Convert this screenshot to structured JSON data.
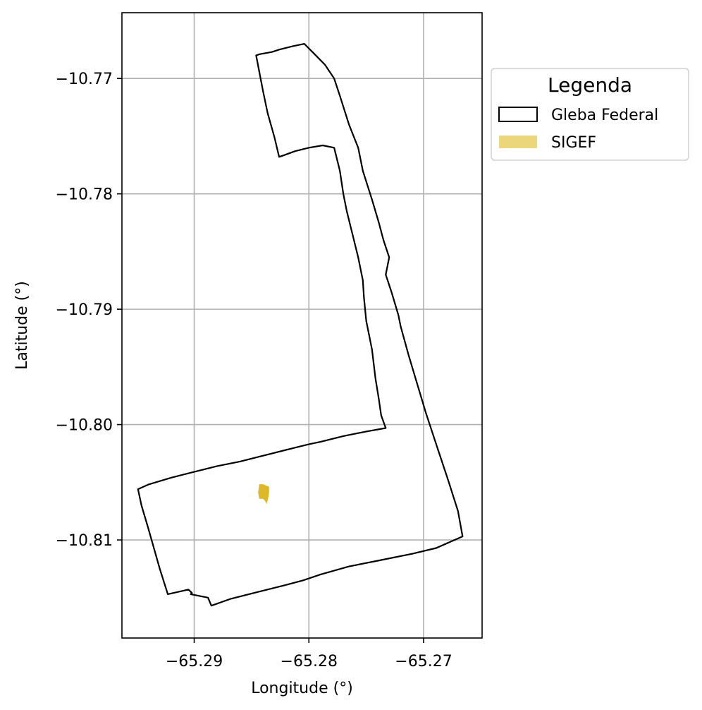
{
  "chart_data": {
    "type": "map",
    "xlabel": "Longitude (°)",
    "ylabel": "Latitude (°)",
    "xlim": [
      -65.2963,
      -65.2649
    ],
    "ylim": [
      -10.8185,
      -10.7643
    ],
    "grid": true,
    "x_ticks": [
      {
        "value": -65.29,
        "label": "−65.29"
      },
      {
        "value": -65.28,
        "label": "−65.28"
      },
      {
        "value": -65.27,
        "label": "−65.27"
      }
    ],
    "y_ticks": [
      {
        "value": -10.77,
        "label": "−10.77"
      },
      {
        "value": -10.78,
        "label": "−10.78"
      },
      {
        "value": -10.79,
        "label": "−10.79"
      },
      {
        "value": -10.8,
        "label": "−10.80"
      },
      {
        "value": -10.81,
        "label": "−10.81"
      }
    ],
    "legend": {
      "title": "Legenda",
      "placement": "outside-right-top",
      "entries": [
        {
          "label": "Gleba Federal",
          "style": "outline",
          "edge_color": "#000000",
          "fill_color": "#ffffff"
        },
        {
          "label": "SIGEF",
          "style": "fill",
          "fill_color": "#ebd679"
        }
      ]
    },
    "layers": [
      {
        "name": "Gleba Federal",
        "style": "outline",
        "edge_color": "#000000",
        "coordinates": [
          [
            -65.2846,
            -10.768
          ],
          [
            -65.2843,
            -10.7679
          ],
          [
            -65.2832,
            -10.7677
          ],
          [
            -65.2826,
            -10.7675
          ],
          [
            -65.2814,
            -10.7672
          ],
          [
            -65.2804,
            -10.767
          ],
          [
            -65.2796,
            -10.7678
          ],
          [
            -65.2786,
            -10.7688
          ],
          [
            -65.2778,
            -10.77
          ],
          [
            -65.2773,
            -10.7715
          ],
          [
            -65.2765,
            -10.774
          ],
          [
            -65.2757,
            -10.776
          ],
          [
            -65.2753,
            -10.778
          ],
          [
            -65.2745,
            -10.7805
          ],
          [
            -65.2739,
            -10.7825
          ],
          [
            -65.2735,
            -10.784
          ],
          [
            -65.273,
            -10.7855
          ],
          [
            -65.2733,
            -10.787
          ],
          [
            -65.2728,
            -10.7885
          ],
          [
            -65.2722,
            -10.7905
          ],
          [
            -65.272,
            -10.7915
          ],
          [
            -65.2713,
            -10.794
          ],
          [
            -65.2707,
            -10.796
          ],
          [
            -65.2698,
            -10.799
          ],
          [
            -65.2688,
            -10.802
          ],
          [
            -65.2678,
            -10.805
          ],
          [
            -65.267,
            -10.8075
          ],
          [
            -65.2666,
            -10.8097
          ],
          [
            -65.2689,
            -10.8107
          ],
          [
            -65.271,
            -10.8112
          ],
          [
            -65.274,
            -10.8118
          ],
          [
            -65.2765,
            -10.8123
          ],
          [
            -65.279,
            -10.813
          ],
          [
            -65.2805,
            -10.8135
          ],
          [
            -65.282,
            -10.8139
          ],
          [
            -65.2848,
            -10.8146
          ],
          [
            -65.2868,
            -10.8151
          ],
          [
            -65.2885,
            -10.8157
          ],
          [
            -65.2888,
            -10.815
          ],
          [
            -65.2903,
            -10.8147
          ],
          [
            -65.2902,
            -10.8146
          ],
          [
            -65.2905,
            -10.8143
          ],
          [
            -65.2923,
            -10.8147
          ],
          [
            -65.293,
            -10.8125
          ],
          [
            -65.294,
            -10.809
          ],
          [
            -65.2946,
            -10.807
          ],
          [
            -65.2949,
            -10.8056
          ],
          [
            -65.294,
            -10.8052
          ],
          [
            -65.292,
            -10.8046
          ],
          [
            -65.29,
            -10.8041
          ],
          [
            -65.288,
            -10.8036
          ],
          [
            -65.286,
            -10.8032
          ],
          [
            -65.284,
            -10.8027
          ],
          [
            -65.282,
            -10.8022
          ],
          [
            -65.28,
            -10.8017
          ],
          [
            -65.279,
            -10.8015
          ],
          [
            -65.277,
            -10.801
          ],
          [
            -65.275,
            -10.8006
          ],
          [
            -65.2733,
            -10.8003
          ],
          [
            -65.2737,
            -10.7992
          ],
          [
            -65.2739,
            -10.7978
          ],
          [
            -65.2742,
            -10.796
          ],
          [
            -65.2745,
            -10.7935
          ],
          [
            -65.275,
            -10.791
          ],
          [
            -65.2752,
            -10.789
          ],
          [
            -65.2753,
            -10.7875
          ],
          [
            -65.2757,
            -10.7855
          ],
          [
            -65.2762,
            -10.7835
          ],
          [
            -65.2767,
            -10.7815
          ],
          [
            -65.277,
            -10.78
          ],
          [
            -65.2773,
            -10.778
          ],
          [
            -65.2778,
            -10.776
          ],
          [
            -65.2788,
            -10.7758
          ],
          [
            -65.28,
            -10.776
          ],
          [
            -65.2812,
            -10.7763
          ],
          [
            -65.2823,
            -10.7767
          ],
          [
            -65.2826,
            -10.7768
          ],
          [
            -65.283,
            -10.7751
          ],
          [
            -65.2836,
            -10.773
          ],
          [
            -65.284,
            -10.7711
          ],
          [
            -65.2846,
            -10.768
          ]
        ]
      },
      {
        "name": "SIGEF",
        "style": "fill",
        "fill_color": "#ddb92a",
        "coordinates": [
          [
            -65.2843,
            -10.8052
          ],
          [
            -65.284,
            -10.8052
          ],
          [
            -65.2835,
            -10.8054
          ],
          [
            -65.2835,
            -10.8059
          ],
          [
            -65.2836,
            -10.8065
          ],
          [
            -65.2837,
            -10.8068
          ],
          [
            -65.2838,
            -10.8066
          ],
          [
            -65.284,
            -10.8064
          ],
          [
            -65.2843,
            -10.8064
          ],
          [
            -65.2844,
            -10.8059
          ]
        ]
      }
    ]
  }
}
